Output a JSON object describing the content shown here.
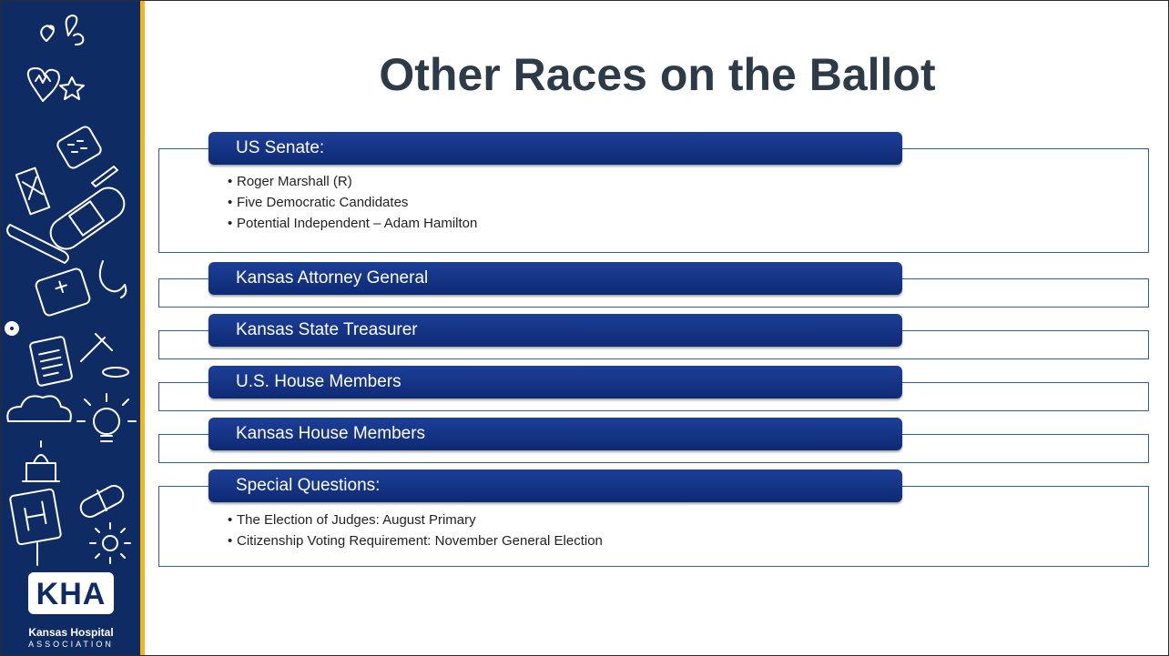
{
  "slide": {
    "title": "Other Races on the Ballot"
  },
  "logo": {
    "mark": "KHA",
    "caption_line1": "Kansas Hospital",
    "caption_line2": "ASSOCIATION"
  },
  "races": [
    {
      "label": "US Senate:",
      "items": [
        "Roger Marshall (R)",
        "Five Democratic Candidates",
        "Potential Independent – Adam Hamilton"
      ]
    },
    {
      "label": "Kansas Attorney General",
      "items": []
    },
    {
      "label": "Kansas State Treasurer",
      "items": []
    },
    {
      "label": "U.S. House Members",
      "items": []
    },
    {
      "label": "Kansas House Members",
      "items": []
    },
    {
      "label": "Special Questions:",
      "items": [
        "The Election of Judges: August Primary",
        "Citizenship Voting Requirement: November General Election"
      ]
    }
  ],
  "colors": {
    "sidebar": "#0f2b63",
    "accent_gold": "#f2b51c",
    "pill": "#1c3f97",
    "box_border": "#2b5bb5",
    "title": "#2d3b48"
  },
  "icons": [
    "hearts-doodle-icon",
    "star-icon",
    "card-reader-icon",
    "hourglass-icon",
    "bandage-icon",
    "thermometer-icon",
    "medical-bag-icon",
    "stethoscope-icon",
    "clipboard-icon",
    "gavel-icon",
    "cloud-icon",
    "lightbulb-icon",
    "capitol-icon",
    "hospital-sign-icon",
    "pill-icon",
    "sun-icon"
  ]
}
